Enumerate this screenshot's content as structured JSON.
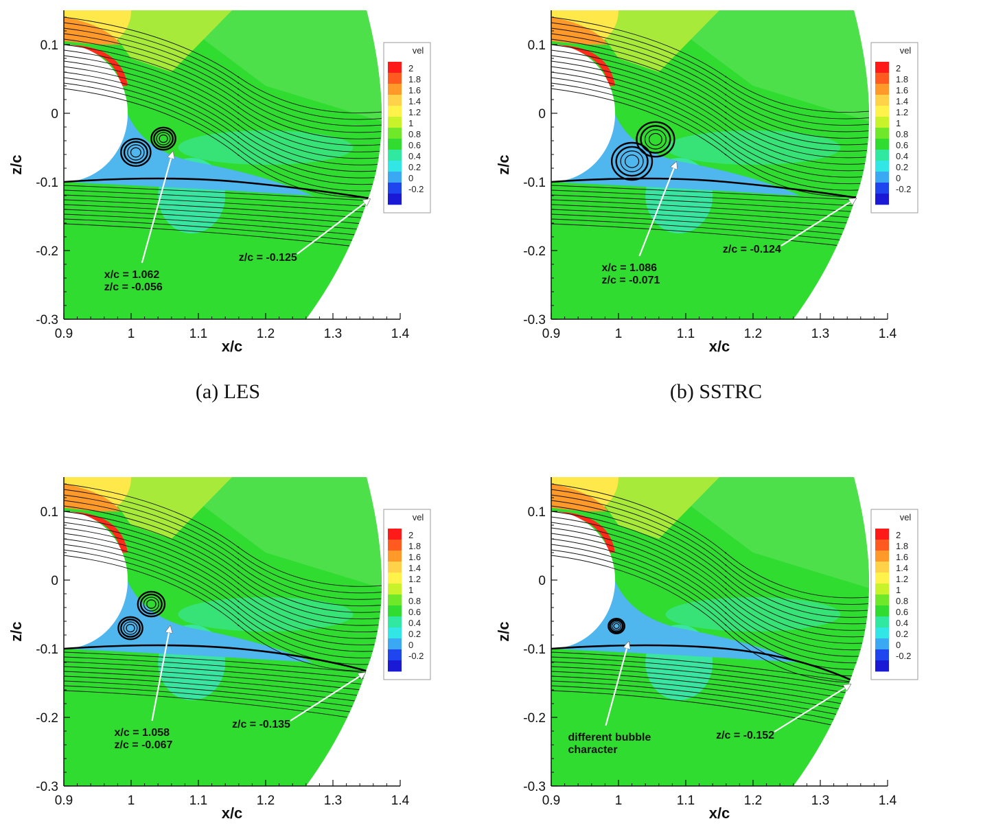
{
  "figure": {
    "panels": [
      {
        "caption": "(a) LES",
        "annotations": [
          {
            "lines": [
              "x/c = 1.062",
              "z/c = -0.056"
            ],
            "point": [
              1.062,
              -0.056
            ],
            "text_at": [
              0.96,
              -0.24
            ]
          },
          {
            "lines": [
              "z/c = -0.125"
            ],
            "point": [
              1.355,
              -0.125
            ],
            "text_at": [
              1.16,
              -0.215
            ]
          }
        ],
        "vortices": [
          [
            1.007,
            -0.057,
            0.022
          ],
          [
            1.048,
            -0.037,
            0.018
          ]
        ],
        "shear_end": -0.125
      },
      {
        "caption": "(b) SSTRC",
        "annotations": [
          {
            "lines": [
              "x/c = 1.086",
              "z/c = -0.071"
            ],
            "point": [
              1.086,
              -0.071
            ],
            "text_at": [
              0.975,
              -0.23
            ]
          },
          {
            "lines": [
              "z/c = -0.124"
            ],
            "point": [
              1.353,
              -0.124
            ],
            "text_at": [
              1.155,
              -0.203
            ]
          }
        ],
        "vortices": [
          [
            1.02,
            -0.07,
            0.03
          ],
          [
            1.055,
            -0.038,
            0.028
          ]
        ],
        "shear_end": -0.124
      },
      {
        "caption": "",
        "annotations": [
          {
            "lines": [
              "x/c = 1.058",
              "z/c = -0.067"
            ],
            "point": [
              1.058,
              -0.067
            ],
            "text_at": [
              0.975,
              -0.227
            ]
          },
          {
            "lines": [
              "z/c = -0.135"
            ],
            "point": [
              1.348,
              -0.135
            ],
            "text_at": [
              1.15,
              -0.215
            ]
          }
        ],
        "vortices": [
          [
            0.999,
            -0.07,
            0.018
          ],
          [
            1.03,
            -0.035,
            0.02
          ]
        ],
        "shear_end": -0.135
      },
      {
        "caption": "",
        "annotations": [
          {
            "lines": [
              "different bubble",
              "character"
            ],
            "point": [
              1.015,
              -0.09
            ],
            "text_at": [
              0.925,
              -0.234
            ]
          },
          {
            "lines": [
              "z/c = -0.152"
            ],
            "point": [
              1.345,
              -0.152
            ],
            "text_at": [
              1.145,
              -0.231
            ]
          }
        ],
        "vortices": [
          [
            0.997,
            -0.067,
            0.012
          ]
        ],
        "shear_end": -0.152
      }
    ],
    "colors": {
      "background": "#2fdc2f",
      "cylinder": "#ffffff",
      "wake": "#4fb6ee",
      "wake_core": "#37aaf0",
      "cyan_patch": "#3fe8c8",
      "streamline": "#111111",
      "arrow": "#ffffff"
    }
  },
  "chart_data": [
    {
      "type": "contour",
      "title": "(a) LES",
      "xlabel": "x/c",
      "ylabel": "z/c",
      "xlim": [
        0.9,
        1.4
      ],
      "ylim": [
        -0.3,
        0.15
      ],
      "xticks": [
        "0.9",
        "1",
        "1.1",
        "1.2",
        "1.3",
        "1.4"
      ],
      "yticks": [
        "0.1",
        "0",
        "-0.1",
        "-0.2",
        "-0.3"
      ],
      "xtick_values": [
        0.9,
        1.0,
        1.1,
        1.2,
        1.3,
        1.4
      ],
      "ytick_values": [
        0.1,
        0,
        -0.1,
        -0.2,
        -0.3
      ],
      "legend": {
        "title": "vel",
        "levels": [
          "2",
          "1.8",
          "1.6",
          "1.4",
          "1.2",
          "1",
          "0.8",
          "0.6",
          "0.4",
          "0.2",
          "0",
          "-0.2"
        ],
        "colors": [
          "#ff1a1a",
          "#ff5a1f",
          "#ff9a2a",
          "#ffd24a",
          "#fff24a",
          "#c8f22a",
          "#6fe82a",
          "#2fdc2f",
          "#30e8a0",
          "#32e6e6",
          "#3aa8f2",
          "#1f46ee",
          "#1a1ad6"
        ]
      },
      "reattachment": {
        "x": 1.062,
        "z": -0.056
      },
      "shear_layer_z_at_outlet": -0.125
    },
    {
      "type": "contour",
      "title": "(b) SSTRC",
      "xlabel": "x/c",
      "ylabel": "z/c",
      "xlim": [
        0.9,
        1.4
      ],
      "ylim": [
        -0.3,
        0.15
      ],
      "xticks": [
        "0.9",
        "1",
        "1.1",
        "1.2",
        "1.3",
        "1.4"
      ],
      "yticks": [
        "0.1",
        "0",
        "-0.1",
        "-0.2",
        "-0.3"
      ],
      "xtick_values": [
        0.9,
        1.0,
        1.1,
        1.2,
        1.3,
        1.4
      ],
      "ytick_values": [
        0.1,
        0,
        -0.1,
        -0.2,
        -0.3
      ],
      "legend": {
        "title": "vel",
        "levels": [
          "2",
          "1.8",
          "1.6",
          "1.4",
          "1.2",
          "1",
          "0.8",
          "0.6",
          "0.4",
          "0.2",
          "0",
          "-0.2"
        ],
        "colors": [
          "#ff1a1a",
          "#ff5a1f",
          "#ff9a2a",
          "#ffd24a",
          "#fff24a",
          "#c8f22a",
          "#6fe82a",
          "#2fdc2f",
          "#30e8a0",
          "#32e6e6",
          "#3aa8f2",
          "#1f46ee",
          "#1a1ad6"
        ]
      },
      "reattachment": {
        "x": 1.086,
        "z": -0.071
      },
      "shear_layer_z_at_outlet": -0.124
    },
    {
      "type": "contour",
      "title": "",
      "xlabel": "x/c",
      "ylabel": "z/c",
      "xlim": [
        0.9,
        1.4
      ],
      "ylim": [
        -0.3,
        0.15
      ],
      "xticks": [
        "0.9",
        "1",
        "1.1",
        "1.2",
        "1.3",
        "1.4"
      ],
      "yticks": [
        "0.1",
        "0",
        "-0.1",
        "-0.2",
        "-0.3"
      ],
      "xtick_values": [
        0.9,
        1.0,
        1.1,
        1.2,
        1.3,
        1.4
      ],
      "ytick_values": [
        0.1,
        0,
        -0.1,
        -0.2,
        -0.3
      ],
      "legend": {
        "title": "vel",
        "levels": [
          "2",
          "1.8",
          "1.6",
          "1.4",
          "1.2",
          "1",
          "0.8",
          "0.6",
          "0.4",
          "0.2",
          "0",
          "-0.2"
        ],
        "colors": [
          "#ff1a1a",
          "#ff5a1f",
          "#ff9a2a",
          "#ffd24a",
          "#fff24a",
          "#c8f22a",
          "#6fe82a",
          "#2fdc2f",
          "#30e8a0",
          "#32e6e6",
          "#3aa8f2",
          "#1f46ee",
          "#1a1ad6"
        ]
      },
      "reattachment": {
        "x": 1.058,
        "z": -0.067
      },
      "shear_layer_z_at_outlet": -0.135
    },
    {
      "type": "contour",
      "title": "",
      "xlabel": "x/c",
      "ylabel": "z/c",
      "xlim": [
        0.9,
        1.4
      ],
      "ylim": [
        -0.3,
        0.15
      ],
      "xticks": [
        "0.9",
        "1",
        "1.1",
        "1.2",
        "1.3",
        "1.4"
      ],
      "yticks": [
        "0.1",
        "0",
        "-0.1",
        "-0.2",
        "-0.3"
      ],
      "xtick_values": [
        0.9,
        1.0,
        1.1,
        1.2,
        1.3,
        1.4
      ],
      "ytick_values": [
        0.1,
        0,
        -0.1,
        -0.2,
        -0.3
      ],
      "legend": {
        "title": "vel",
        "levels": [
          "2",
          "1.8",
          "1.6",
          "1.4",
          "1.2",
          "1",
          "0.8",
          "0.6",
          "0.4",
          "0.2",
          "0",
          "-0.2"
        ],
        "colors": [
          "#ff1a1a",
          "#ff5a1f",
          "#ff9a2a",
          "#ffd24a",
          "#fff24a",
          "#c8f22a",
          "#6fe82a",
          "#2fdc2f",
          "#30e8a0",
          "#32e6e6",
          "#3aa8f2",
          "#1f46ee",
          "#1a1ad6"
        ]
      },
      "annotation": "different bubble character",
      "shear_layer_z_at_outlet": -0.152
    }
  ]
}
